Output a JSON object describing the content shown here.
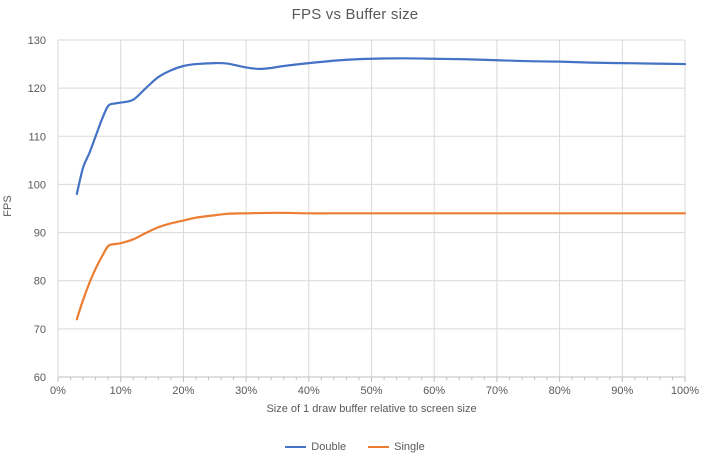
{
  "chart_data": {
    "type": "line",
    "title": "FPS vs Buffer size",
    "xlabel": "Size of 1 draw buffer relative to screen size",
    "ylabel": "FPS",
    "xlim": [
      0,
      100
    ],
    "ylim": [
      60,
      130
    ],
    "grid": true,
    "legend_position": "bottom",
    "x_tick_values": [
      0,
      10,
      20,
      30,
      40,
      50,
      60,
      70,
      80,
      90,
      100
    ],
    "x_tick_labels": [
      "0%",
      "10%",
      "20%",
      "30%",
      "40%",
      "50%",
      "60%",
      "70%",
      "80%",
      "90%",
      "100%"
    ],
    "x_minor_tick_step": 2,
    "y_tick_values": [
      60,
      70,
      80,
      90,
      100,
      110,
      120,
      130
    ],
    "y_tick_labels": [
      "60",
      "70",
      "80",
      "90",
      "100",
      "110",
      "120",
      "130"
    ],
    "series": [
      {
        "name": "Double",
        "color": "#4472C4",
        "points": [
          [
            3,
            98
          ],
          [
            4,
            103.5
          ],
          [
            5,
            106.5
          ],
          [
            6,
            110
          ],
          [
            7,
            113.5
          ],
          [
            8,
            116.3
          ],
          [
            9,
            116.8
          ],
          [
            10,
            117
          ],
          [
            12,
            117.6
          ],
          [
            14,
            120
          ],
          [
            16,
            122.3
          ],
          [
            18,
            123.7
          ],
          [
            20,
            124.6
          ],
          [
            22,
            125
          ],
          [
            25,
            125.2
          ],
          [
            27,
            125.1
          ],
          [
            30,
            124.3
          ],
          [
            32,
            124
          ],
          [
            34,
            124.2
          ],
          [
            36,
            124.6
          ],
          [
            40,
            125.2
          ],
          [
            45,
            125.8
          ],
          [
            50,
            126.1
          ],
          [
            55,
            126.2
          ],
          [
            60,
            126.1
          ],
          [
            65,
            126
          ],
          [
            70,
            125.8
          ],
          [
            75,
            125.6
          ],
          [
            80,
            125.5
          ],
          [
            85,
            125.3
          ],
          [
            90,
            125.2
          ],
          [
            95,
            125.1
          ],
          [
            100,
            125
          ]
        ]
      },
      {
        "name": "Single",
        "color": "#ED7D31",
        "points": [
          [
            3,
            72
          ],
          [
            4,
            76
          ],
          [
            5,
            79.5
          ],
          [
            6,
            82.5
          ],
          [
            7,
            85
          ],
          [
            8,
            87.2
          ],
          [
            9,
            87.6
          ],
          [
            10,
            87.8
          ],
          [
            12,
            88.6
          ],
          [
            14,
            89.9
          ],
          [
            16,
            91.1
          ],
          [
            18,
            91.9
          ],
          [
            20,
            92.5
          ],
          [
            22,
            93.1
          ],
          [
            25,
            93.6
          ],
          [
            27,
            93.9
          ],
          [
            30,
            94
          ],
          [
            35,
            94.1
          ],
          [
            40,
            94
          ],
          [
            45,
            94
          ],
          [
            50,
            94
          ],
          [
            55,
            94
          ],
          [
            60,
            94
          ],
          [
            65,
            94
          ],
          [
            70,
            94
          ],
          [
            75,
            94
          ],
          [
            80,
            94
          ],
          [
            85,
            94
          ],
          [
            90,
            94
          ],
          [
            95,
            94
          ],
          [
            100,
            94
          ]
        ]
      }
    ],
    "style": {
      "grid_color": "#D9D9D9",
      "axis_color": "#BFBFBF",
      "text_color": "#595959",
      "tick_font_size": 11,
      "line_width": 2.2
    }
  }
}
